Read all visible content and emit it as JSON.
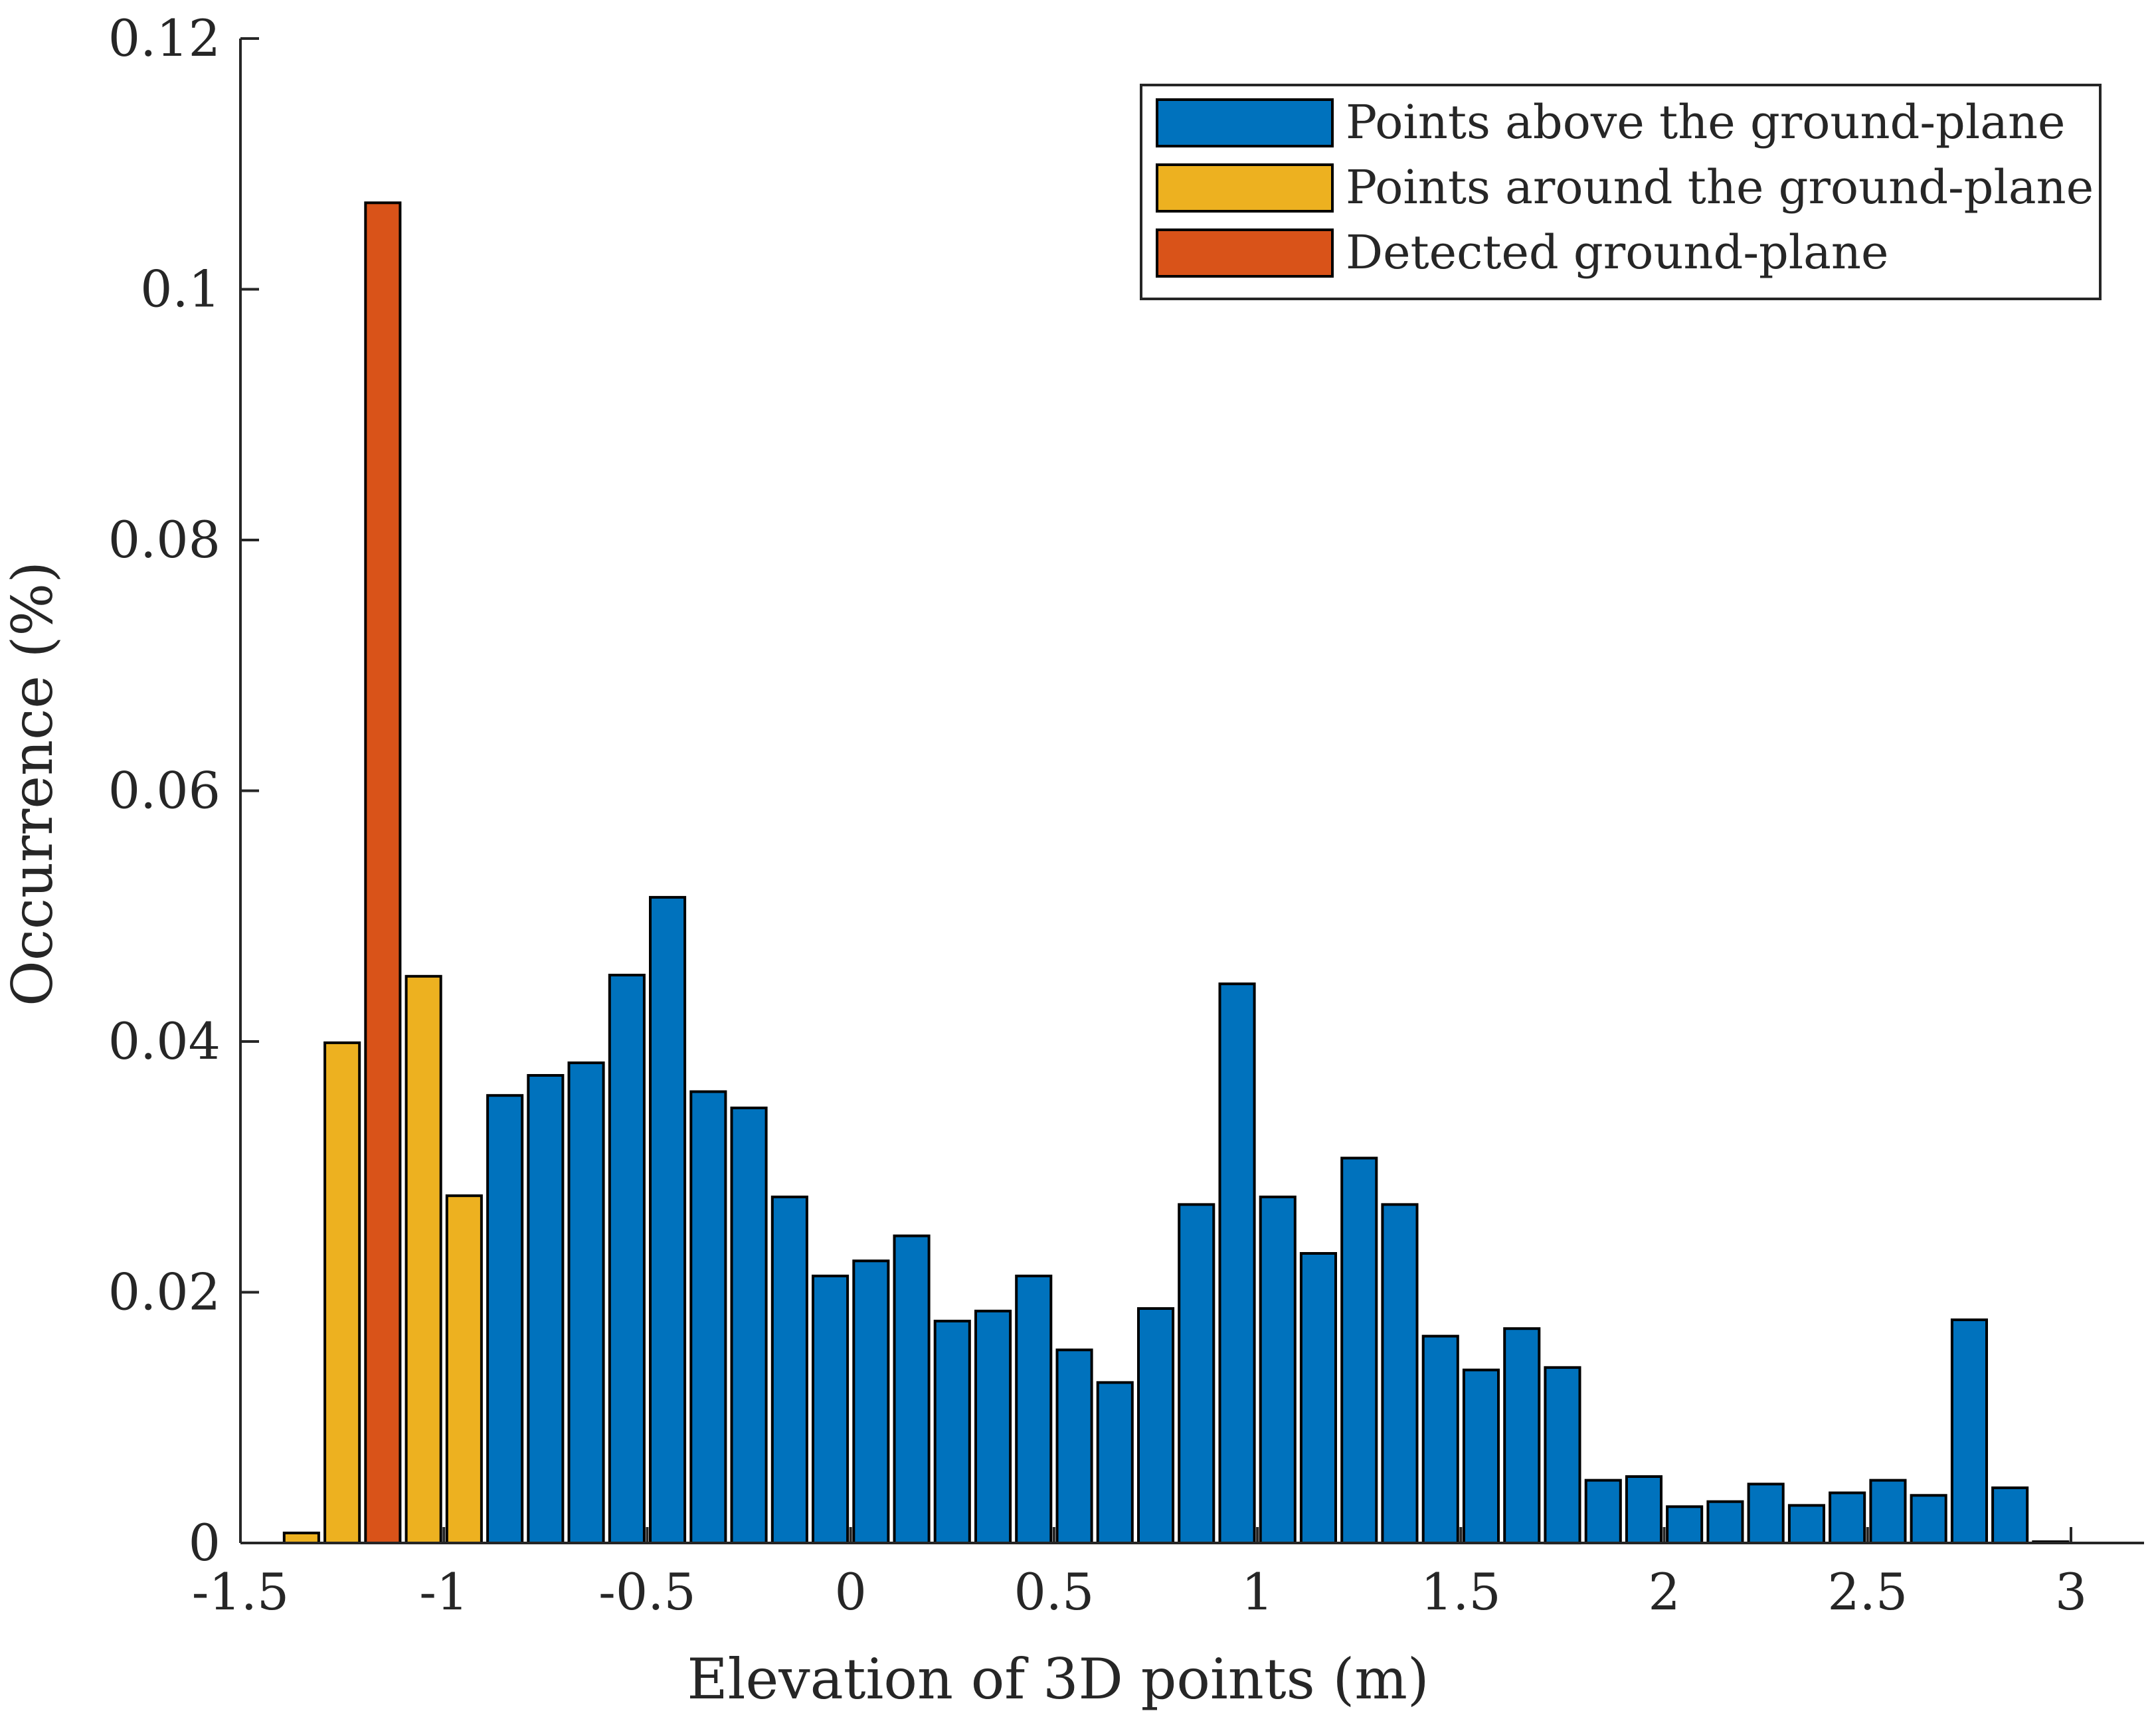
{
  "chart_data": {
    "type": "bar",
    "xlabel": "Elevation of 3D points (m)",
    "ylabel": "Occurrence (%)",
    "xlim": [
      -1.5,
      3.0
    ],
    "ylim": [
      0,
      0.12
    ],
    "grid": false,
    "legend_position": "top-right",
    "xticks": [
      -1.5,
      -1,
      -0.5,
      0,
      0.5,
      1,
      1.5,
      2,
      2.5,
      3
    ],
    "xtick_labels": [
      "-1.5",
      "-1",
      "-0.5",
      "0",
      "0.5",
      "1",
      "1.5",
      "2",
      "2.5",
      "3"
    ],
    "yticks": [
      0,
      0.02,
      0.04,
      0.06,
      0.08,
      0.1,
      0.12
    ],
    "ytick_labels": [
      "0",
      "0.02",
      "0.04",
      "0.06",
      "0.08",
      "0.1",
      "0.12"
    ],
    "series": [
      {
        "name": "Points above the ground-plane",
        "color": "#0072bd",
        "x": [
          -0.85,
          -0.75,
          -0.65,
          -0.55,
          -0.45,
          -0.35,
          -0.25,
          -0.15,
          -0.05,
          0.05,
          0.15,
          0.25,
          0.35,
          0.45,
          0.55,
          0.65,
          0.75,
          0.85,
          0.95,
          1.05,
          1.15,
          1.25,
          1.35,
          1.45,
          1.55,
          1.65,
          1.75,
          1.85,
          1.95,
          2.05,
          2.15,
          2.25,
          2.35,
          2.45,
          2.55,
          2.65,
          2.75,
          2.85,
          2.95
        ],
        "values": [
          0.0357,
          0.0373,
          0.0383,
          0.0453,
          0.0515,
          0.036,
          0.0347,
          0.0276,
          0.0213,
          0.0225,
          0.0245,
          0.0177,
          0.0185,
          0.0213,
          0.0154,
          0.0128,
          0.0187,
          0.027,
          0.0446,
          0.0276,
          0.0231,
          0.0307,
          0.027,
          0.0165,
          0.0138,
          0.0171,
          0.014,
          0.005,
          0.0053,
          0.0029,
          0.0033,
          0.0047,
          0.003,
          0.004,
          0.005,
          0.0038,
          0.0178,
          0.0044,
          0.0001
        ]
      },
      {
        "name": "Points around the ground-plane",
        "color": "#edb120",
        "x": [
          -1.35,
          -1.25,
          -1.05,
          -0.95
        ],
        "values": [
          0.0008,
          0.0399,
          0.0452,
          0.0277
        ]
      },
      {
        "name": "Detected ground-plane",
        "color": "#d95319",
        "x": [
          -1.15
        ],
        "values": [
          0.1069
        ]
      }
    ]
  }
}
